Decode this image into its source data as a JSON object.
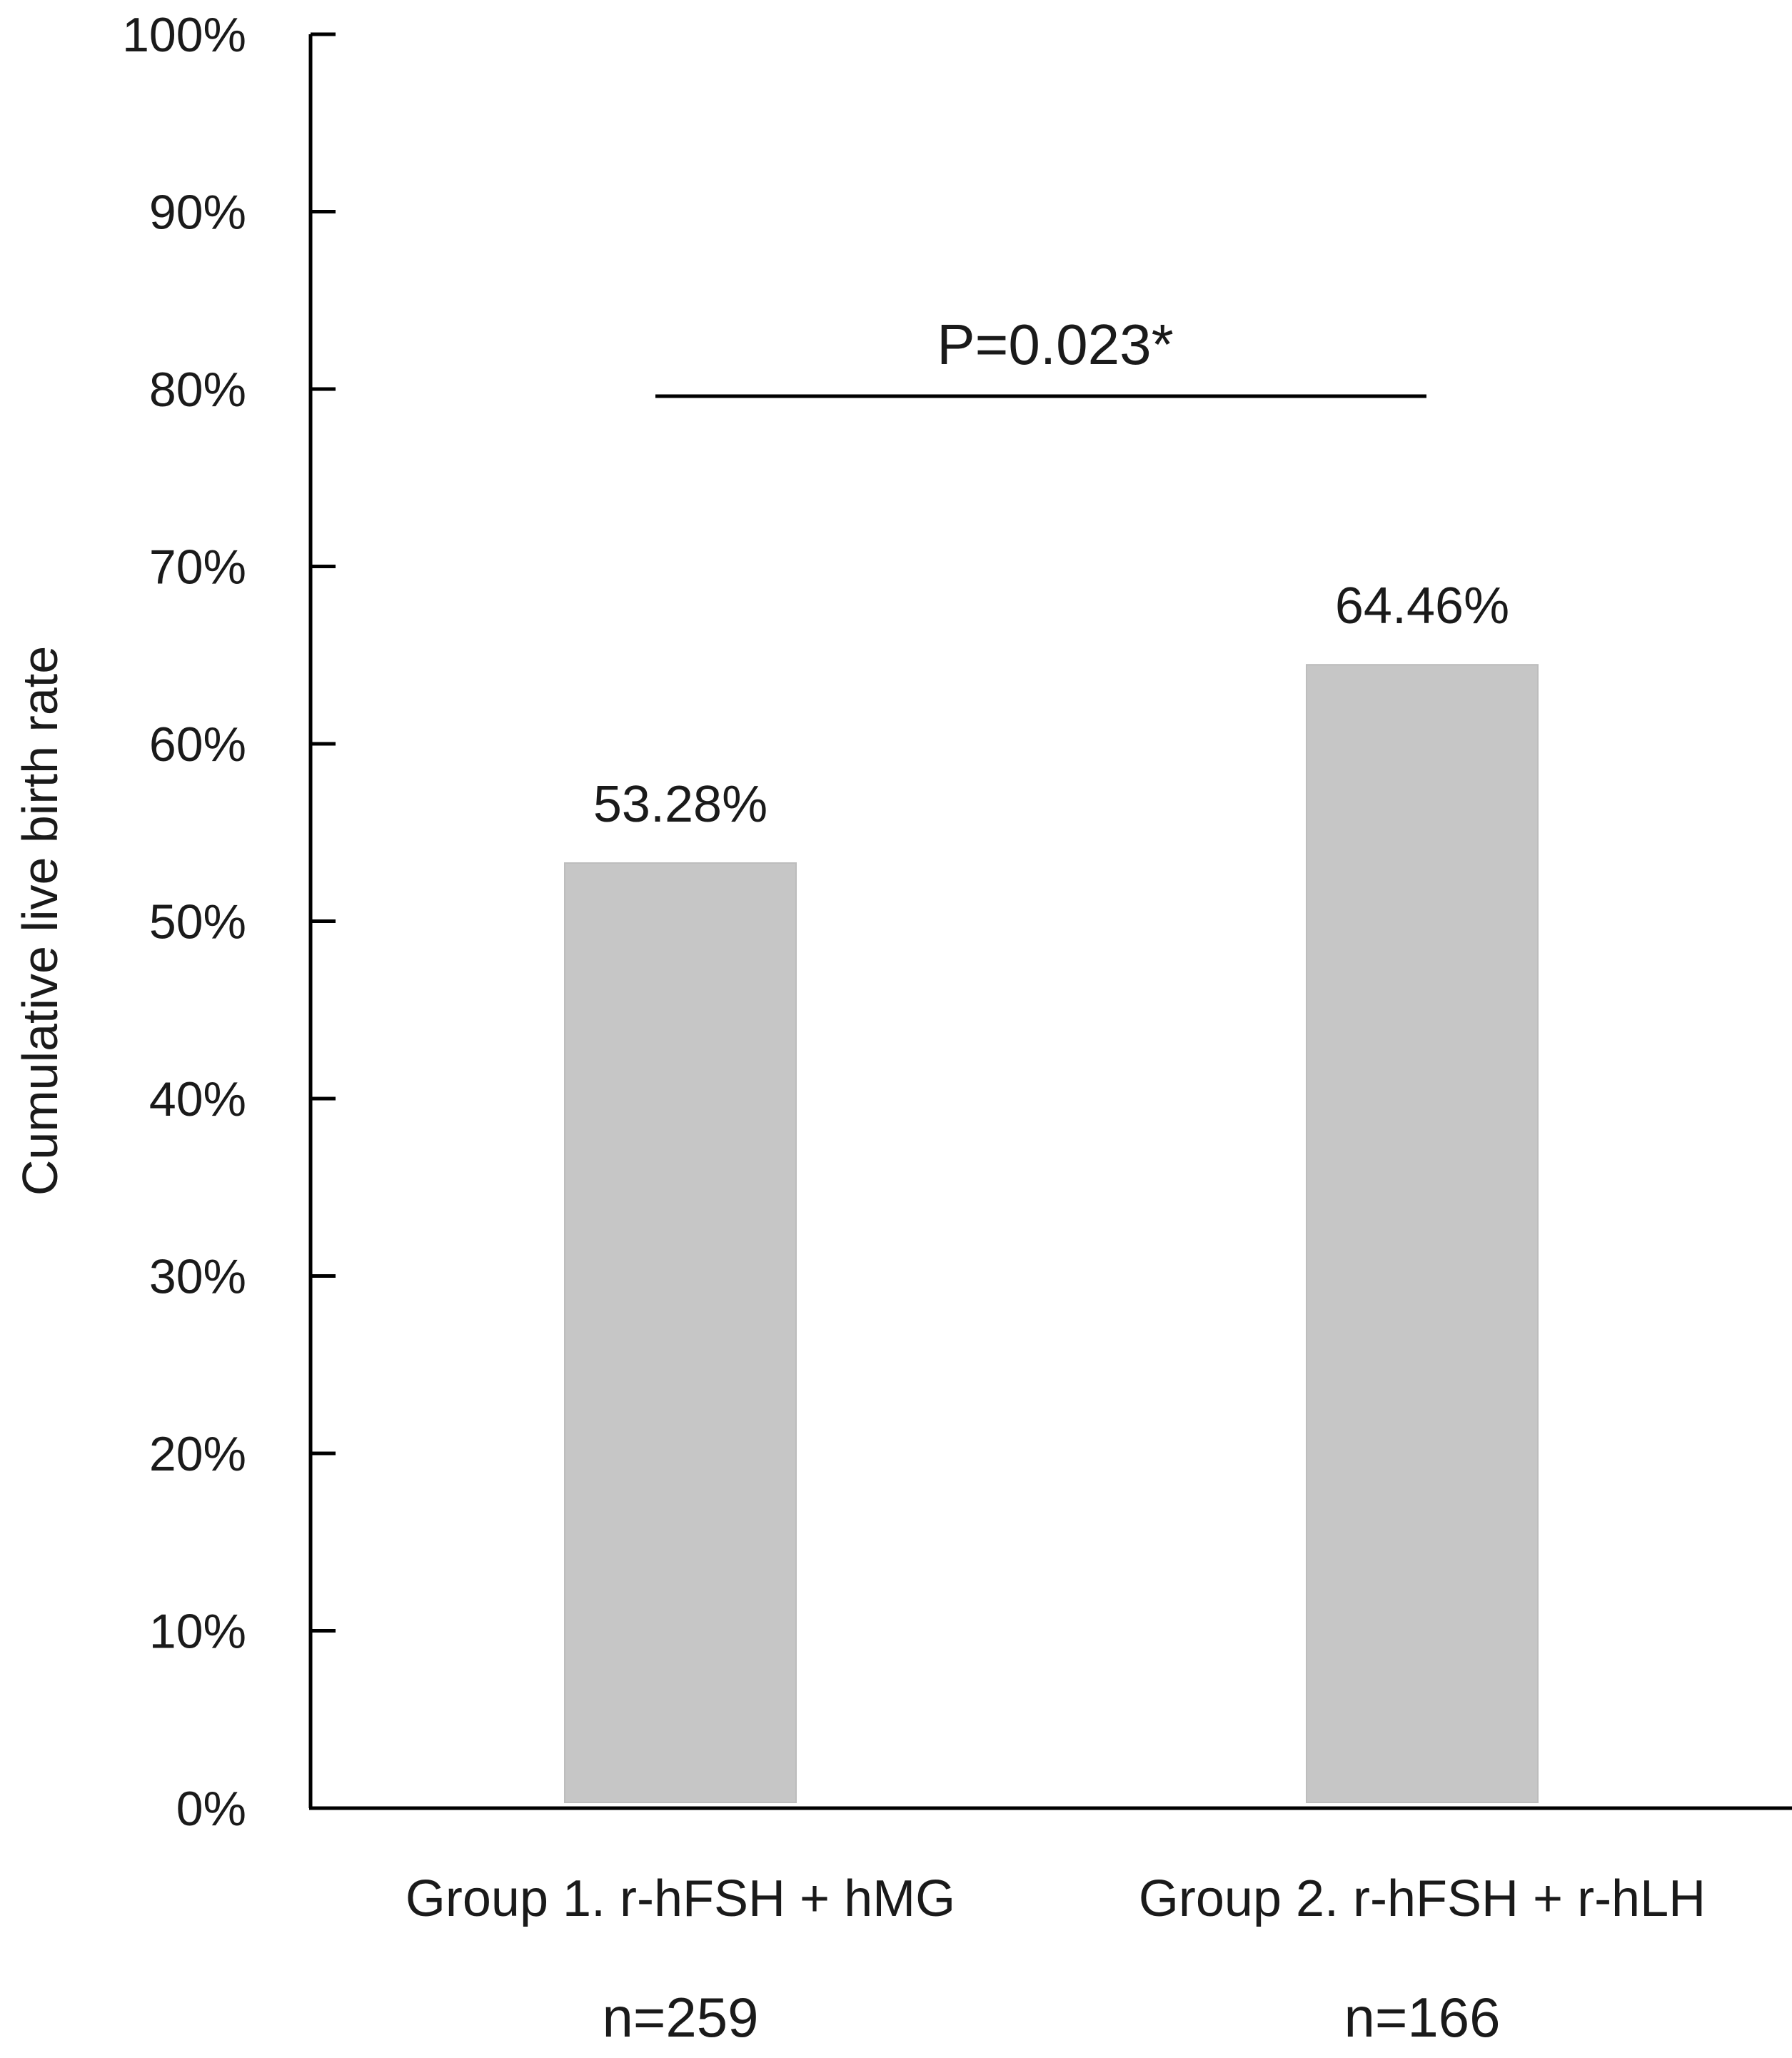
{
  "chart_data": {
    "type": "bar",
    "categories": [
      "Group 1. r-hFSH + hMG",
      "Group 2. r-hFSH + r-hLH"
    ],
    "sample_sizes": [
      "n=259",
      "n=166"
    ],
    "values": [
      53.28,
      64.46
    ],
    "data_labels": [
      "53.28%",
      "64.46%"
    ],
    "ylabel": "Cumulative  live birth rate",
    "xlabel": "",
    "ylim": [
      0,
      100
    ],
    "yticks": [
      0,
      10,
      20,
      30,
      40,
      50,
      60,
      70,
      80,
      90,
      100
    ],
    "ytick_labels": [
      "0%",
      "10%",
      "20%",
      "30%",
      "40%",
      "50%",
      "60%",
      "70%",
      "80%",
      "90%",
      "100%"
    ],
    "annotation": {
      "text": "P=0.023*",
      "level": 80,
      "from_category": 0,
      "to_category": 1
    },
    "bar_color": "#c6c6c6",
    "axis_color": "#000000",
    "grid": false,
    "legend": "none"
  }
}
